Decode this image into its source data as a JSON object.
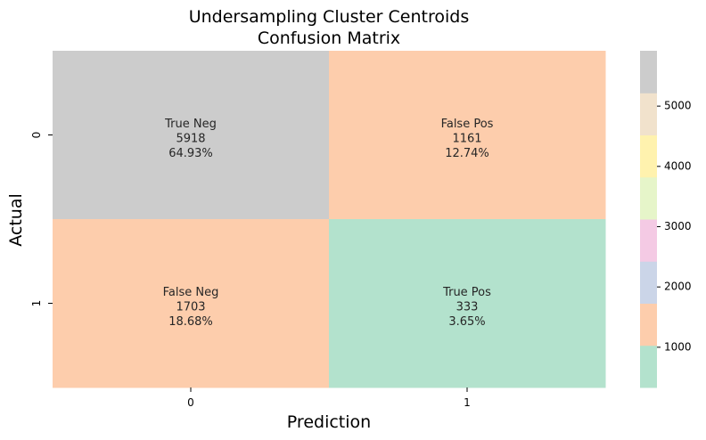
{
  "chart_data": {
    "type": "heatmap",
    "title": [
      "Undersampling Cluster Centroids",
      "Confusion Matrix"
    ],
    "xlabel": "Prediction",
    "ylabel": "Actual",
    "x_categories": [
      "0",
      "1"
    ],
    "y_categories": [
      "0",
      "1"
    ],
    "values": [
      [
        5918,
        1161
      ],
      [
        1703,
        333
      ]
    ],
    "annotations": [
      [
        {
          "label": "True Neg",
          "count": "5918",
          "percent": "64.93%"
        },
        {
          "label": "False Pos",
          "count": "1161",
          "percent": "12.74%"
        }
      ],
      [
        {
          "label": "False Neg",
          "count": "1703",
          "percent": "18.68%"
        },
        {
          "label": "True Pos",
          "count": "333",
          "percent": "3.65%"
        }
      ]
    ],
    "colormap": "Pastel2",
    "colorbar": {
      "vmin": 333,
      "vmax": 5918,
      "ticks": [
        1000,
        2000,
        3000,
        4000,
        5000
      ],
      "tick_labels": [
        "1000",
        "2000",
        "3000",
        "4000",
        "5000"
      ],
      "colors": [
        "#b3e2cd",
        "#fdcdac",
        "#cbd5e8",
        "#f4cae4",
        "#e6f5c9",
        "#fff2ae",
        "#f1e2cc",
        "#cccccc"
      ]
    }
  }
}
